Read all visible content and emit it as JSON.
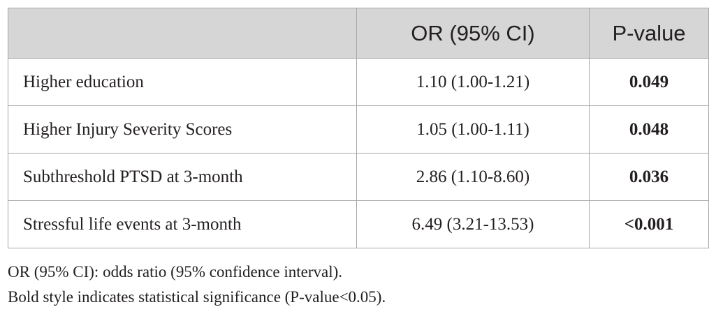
{
  "table": {
    "headers": [
      "",
      "OR (95% CI)",
      "P-value"
    ],
    "rows": [
      {
        "label": "Higher education",
        "or_ci": "1.10 (1.00-1.21)",
        "p_value": "0.049"
      },
      {
        "label": "Higher Injury Severity Scores",
        "or_ci": "1.05 (1.00-1.11)",
        "p_value": "0.048"
      },
      {
        "label": "Subthreshold PTSD at 3-month",
        "or_ci": "2.86 (1.10-8.60)",
        "p_value": "0.036"
      },
      {
        "label": "Stressful life events at 3-month",
        "or_ci": "6.49 (3.21-13.53)",
        "p_value": "<0.001"
      }
    ]
  },
  "footnotes": [
    "OR (95% CI): odds ratio (95% confidence interval).",
    "Bold style indicates statistical significance (P-value<0.05)."
  ]
}
